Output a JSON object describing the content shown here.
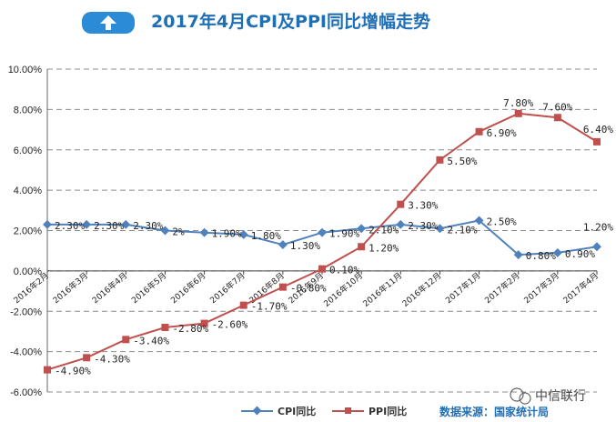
{
  "chart_data": {
    "type": "line",
    "title": "2017年4月CPI及PPI同比增幅走势",
    "categories": [
      "2016年2月",
      "2016年3月",
      "2016年4月",
      "2016年5月",
      "2016年6月",
      "2016年7月",
      "2016年8月",
      "2016年9月",
      "2016年10月",
      "2016年11月",
      "2016年12月",
      "2017年1月",
      "2017年2月",
      "2017年3月",
      "2017年4月"
    ],
    "series": [
      {
        "name": "CPI同比",
        "color": "#4f81bd",
        "marker": "diamond",
        "values": [
          2.3,
          2.3,
          2.3,
          2.0,
          1.9,
          1.8,
          1.3,
          1.9,
          2.1,
          2.3,
          2.1,
          2.5,
          0.8,
          0.9,
          1.2
        ],
        "labels": [
          "2.30%",
          "2.30%",
          "2.30%",
          "2%",
          "1.90%",
          "1.80%",
          "1.30%",
          "1.90%",
          "2.10%",
          "2.30%",
          "2.10%",
          "2.50%",
          "0.80%",
          "0.90%",
          "1.20%"
        ]
      },
      {
        "name": "PPI同比",
        "color": "#c0504d",
        "marker": "square",
        "values": [
          -4.9,
          -4.3,
          -3.4,
          -2.8,
          -2.6,
          -1.7,
          -0.8,
          0.1,
          1.2,
          3.3,
          5.5,
          6.9,
          7.8,
          7.6,
          6.4
        ],
        "labels": [
          "-4.90%",
          "-4.30%",
          "-3.40%",
          "-2.80%",
          "-2.60%",
          "-1.70%",
          "-0.80%",
          "0.10%",
          "1.20%",
          "3.30%",
          "5.50%",
          "6.90%",
          "7.80%",
          "7.60%",
          "6.40%"
        ]
      }
    ],
    "yticks": [
      "10.00%",
      "8.00%",
      "6.00%",
      "4.00%",
      "2.00%",
      "0.00%",
      "-2.00%",
      "-4.00%",
      "-6.00%"
    ],
    "ylim": [
      -6,
      10
    ],
    "grid": true,
    "legend": "bottom-center"
  },
  "header": {
    "icon": "upload-icon"
  },
  "footer": {
    "source": "数据来源：国家统计局",
    "watermark": "中信联行"
  }
}
